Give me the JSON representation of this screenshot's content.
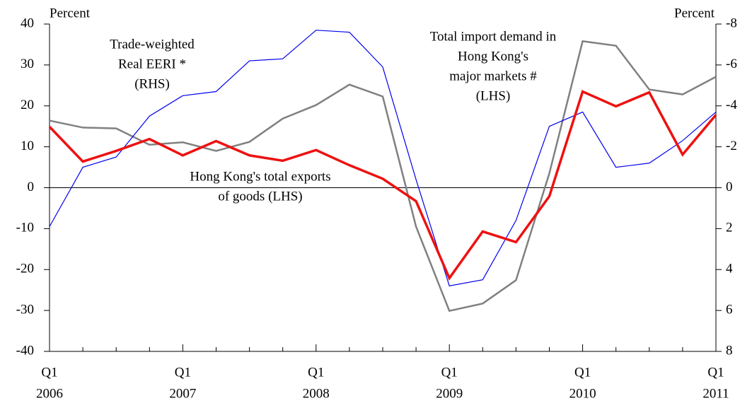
{
  "chart_data": {
    "type": "line",
    "y_label": "Percent",
    "y2_label": "Percent",
    "categories": [
      [
        "Q1",
        "2006"
      ],
      null,
      null,
      null,
      [
        "Q1",
        "2007"
      ],
      null,
      null,
      null,
      [
        "Q1",
        "2008"
      ],
      null,
      null,
      null,
      [
        "Q1",
        "2009"
      ],
      null,
      null,
      null,
      [
        "Q1",
        "2010"
      ],
      null,
      null,
      null,
      [
        "Q1",
        "2011"
      ]
    ],
    "ylim": [
      -40,
      40
    ],
    "yticks": [
      -40,
      -30,
      -20,
      -10,
      0,
      10,
      20,
      30,
      40
    ],
    "y2lim": [
      8,
      -8
    ],
    "y2ticks": [
      -8,
      -6,
      -4,
      -2,
      0,
      2,
      4,
      6,
      8
    ],
    "series": [
      {
        "name": [
          "Total import demand in",
          "Hong Kong's",
          "major markets #",
          "(LHS)"
        ],
        "color": "#808080",
        "axis": "y",
        "values": [
          16.4,
          14.7,
          14.5,
          10.5,
          11.1,
          9.0,
          11.2,
          16.9,
          20.2,
          25.2,
          22.3,
          -9.5,
          -30.1,
          -28.3,
          -22.6,
          3.5,
          35.8,
          34.7,
          24.0,
          22.8,
          27.1
        ]
      },
      {
        "name": [
          "Trade-weighted",
          "Real EERI *",
          "(RHS)"
        ],
        "color": "#0000ee",
        "axis": "y2",
        "values": [
          1.9,
          -1.0,
          -1.5,
          -3.5,
          -4.5,
          -4.7,
          -6.2,
          -6.3,
          -7.7,
          -7.6,
          -5.9,
          -0.4,
          4.8,
          4.5,
          1.6,
          -3.0,
          -3.7,
          -1.0,
          -1.2,
          -2.3,
          -3.7
        ]
      },
      {
        "name": [
          "Hong Kong's total exports",
          "of goods (LHS)"
        ],
        "color": "#ee1111",
        "axis": "y",
        "values": [
          14.9,
          6.4,
          9.0,
          11.9,
          7.9,
          11.4,
          7.9,
          6.6,
          9.2,
          5.5,
          2.2,
          -3.3,
          -22.1,
          -10.7,
          -13.3,
          -2.1,
          23.5,
          19.9,
          23.3,
          8.1,
          17.8
        ]
      }
    ]
  }
}
